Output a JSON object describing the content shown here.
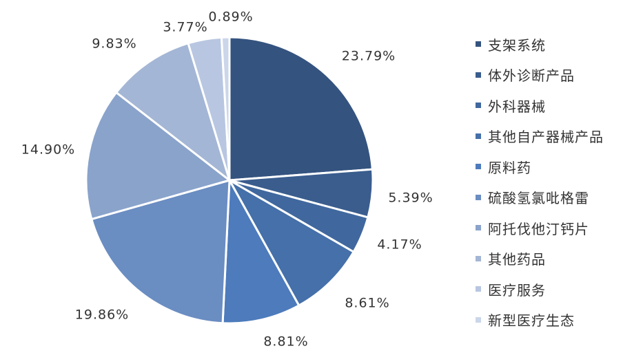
{
  "chart_data": {
    "type": "pie",
    "title": "",
    "categories": [
      "支架系统",
      "体外诊断产品",
      "外科器械",
      "其他自产器械产品",
      "原料药",
      "硫酸氢氯吡格雷",
      "阿托伐他汀钙片",
      "其他药品",
      "医疗服务",
      "新型医疗生态"
    ],
    "values": [
      23.79,
      5.39,
      4.17,
      8.61,
      8.81,
      19.86,
      14.9,
      9.83,
      3.77,
      0.89
    ],
    "labels": [
      "23.79%",
      "5.39%",
      "4.17%",
      "8.61%",
      "8.81%",
      "19.86%",
      "14.90%",
      "9.83%",
      "3.77%",
      "0.89%"
    ],
    "colors": [
      "#34537f",
      "#3a5d8e",
      "#40689e",
      "#4570a9",
      "#4d7bbc",
      "#6a8dc2",
      "#8aa3cb",
      "#a4b6d5",
      "#b8c6e1",
      "#ccd6ea"
    ],
    "legend_position": "right"
  }
}
